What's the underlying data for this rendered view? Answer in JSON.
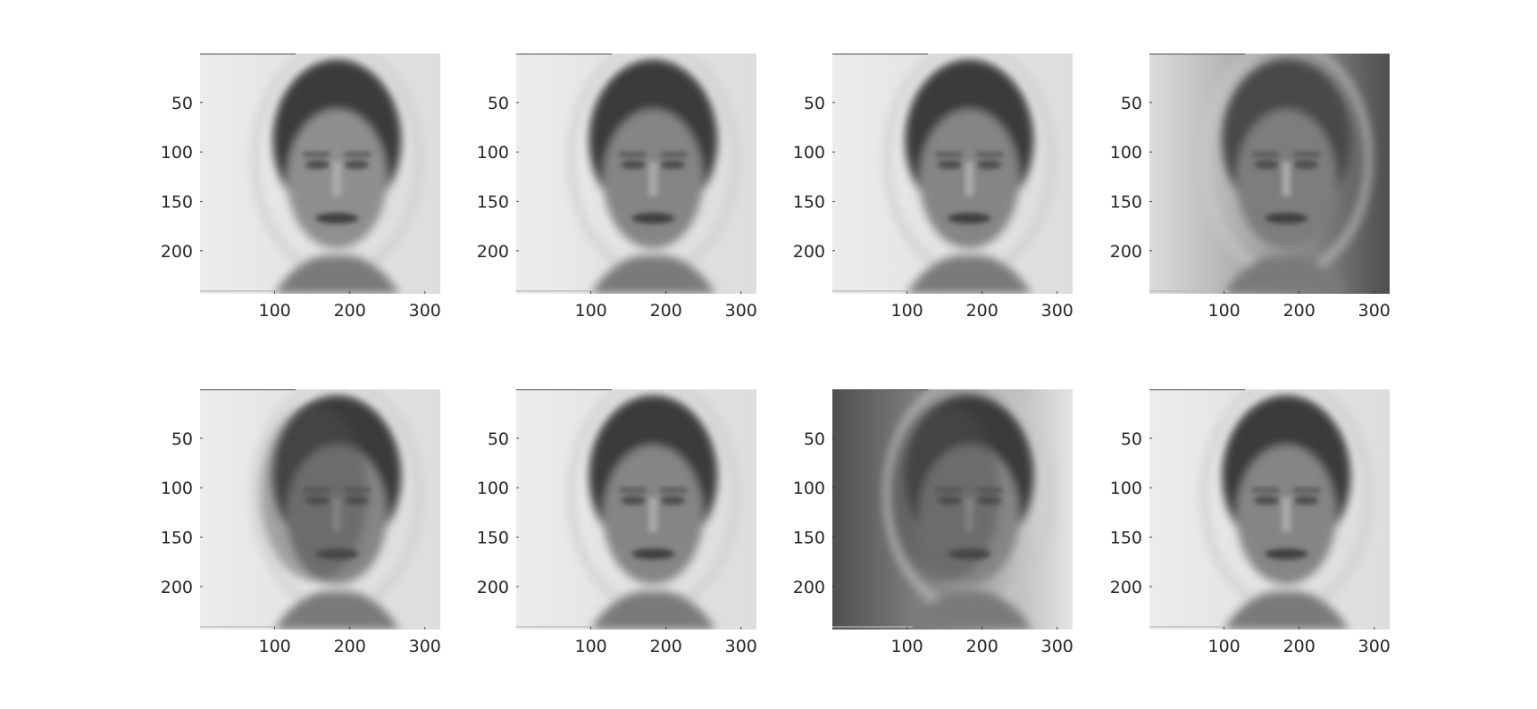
{
  "figure": {
    "rows": 2,
    "cols": 4
  },
  "chart_data": [
    {
      "type": "image",
      "xlim": [
        0.5,
        320.5
      ],
      "ylim": [
        0.5,
        243.5
      ],
      "xticks": [
        100,
        200,
        300
      ],
      "yticks": [
        50,
        100,
        150,
        200
      ],
      "xticklabels": [
        "100",
        "200",
        "300"
      ],
      "yticklabels": [
        "50",
        "100",
        "150",
        "200"
      ],
      "colormap": "gray",
      "content": "face",
      "face_tone": "light",
      "background_tone": "light"
    },
    {
      "type": "image",
      "xlim": [
        0.5,
        320.5
      ],
      "ylim": [
        0.5,
        243.5
      ],
      "xticks": [
        100,
        200,
        300
      ],
      "yticks": [
        50,
        100,
        150,
        200
      ],
      "xticklabels": [
        "100",
        "200",
        "300"
      ],
      "yticklabels": [
        "50",
        "100",
        "150",
        "200"
      ],
      "colormap": "gray",
      "content": "face",
      "face_tone": "medium",
      "background_tone": "light"
    },
    {
      "type": "image",
      "xlim": [
        0.5,
        320.5
      ],
      "ylim": [
        0.5,
        243.5
      ],
      "xticks": [
        100,
        200,
        300
      ],
      "yticks": [
        50,
        100,
        150,
        200
      ],
      "xticklabels": [
        "100",
        "200",
        "300"
      ],
      "yticklabels": [
        "50",
        "100",
        "150",
        "200"
      ],
      "colormap": "gray",
      "content": "face",
      "face_tone": "medium",
      "background_tone": "light"
    },
    {
      "type": "image",
      "xlim": [
        0.5,
        320.5
      ],
      "ylim": [
        0.5,
        243.5
      ],
      "xticks": [
        100,
        200,
        300
      ],
      "yticks": [
        50,
        100,
        150,
        200
      ],
      "xticklabels": [
        "100",
        "200",
        "300"
      ],
      "yticklabels": [
        "50",
        "100",
        "150",
        "200"
      ],
      "colormap": "gray",
      "content": "face",
      "face_tone": "blurred",
      "background_tone": "dark-right"
    },
    {
      "type": "image",
      "xlim": [
        0.5,
        320.5
      ],
      "ylim": [
        0.5,
        243.5
      ],
      "xticks": [
        100,
        200,
        300
      ],
      "yticks": [
        50,
        100,
        150,
        200
      ],
      "xticklabels": [
        "100",
        "200",
        "300"
      ],
      "yticklabels": [
        "50",
        "100",
        "150",
        "200"
      ],
      "colormap": "gray",
      "content": "face",
      "face_tone": "ghosted",
      "background_tone": "light"
    },
    {
      "type": "image",
      "xlim": [
        0.5,
        320.5
      ],
      "ylim": [
        0.5,
        243.5
      ],
      "xticks": [
        100,
        200,
        300
      ],
      "yticks": [
        50,
        100,
        150,
        200
      ],
      "xticklabels": [
        "100",
        "200",
        "300"
      ],
      "yticklabels": [
        "50",
        "100",
        "150",
        "200"
      ],
      "colormap": "gray",
      "content": "face",
      "face_tone": "medium",
      "background_tone": "light"
    },
    {
      "type": "image",
      "xlim": [
        0.5,
        320.5
      ],
      "ylim": [
        0.5,
        243.5
      ],
      "xticks": [
        100,
        200,
        300
      ],
      "yticks": [
        50,
        100,
        150,
        200
      ],
      "xticklabels": [
        "100",
        "200",
        "300"
      ],
      "yticklabels": [
        "50",
        "100",
        "150",
        "200"
      ],
      "colormap": "gray",
      "content": "face",
      "face_tone": "ghosted",
      "background_tone": "dark-left"
    },
    {
      "type": "image",
      "xlim": [
        0.5,
        320.5
      ],
      "ylim": [
        0.5,
        243.5
      ],
      "xticks": [
        100,
        200,
        300
      ],
      "yticks": [
        50,
        100,
        150,
        200
      ],
      "xticklabels": [
        "100",
        "200",
        "300"
      ],
      "yticklabels": [
        "50",
        "100",
        "150",
        "200"
      ],
      "colormap": "gray",
      "content": "face",
      "face_tone": "medium",
      "background_tone": "light"
    }
  ]
}
